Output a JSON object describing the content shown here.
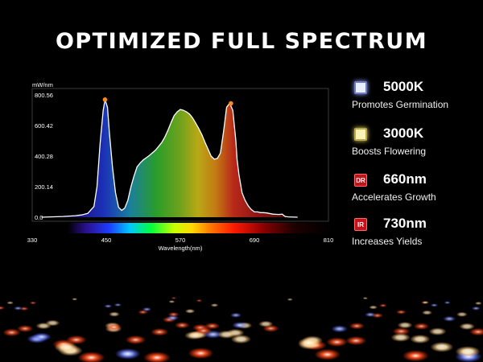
{
  "title": "OPTIMIZED FULL SPECTRUM",
  "legend": [
    {
      "name": "5000K",
      "desc": "Promotes Germination",
      "icon": "white-led-icon",
      "badge": ""
    },
    {
      "name": "3000K",
      "desc": "Boosts Flowering",
      "icon": "warm-led-icon",
      "badge": ""
    },
    {
      "name": "660nm",
      "desc": "Accelerates Growth",
      "icon": "deep-red-led-icon",
      "badge": "DR"
    },
    {
      "name": "730nm",
      "desc": "Increases Yields",
      "icon": "infrared-led-icon",
      "badge": "IR"
    }
  ],
  "chart_data": {
    "type": "area",
    "title": "",
    "xlabel": "Wavelength(nm)",
    "ylabel": "mW/nm",
    "xlim": [
      330,
      810
    ],
    "ylim": [
      0,
      800.56
    ],
    "xticks": [
      330,
      450,
      570,
      690,
      810
    ],
    "yticks": [
      0.0,
      200.14,
      400.28,
      600.42,
      800.56
    ],
    "ytick_labels": [
      "0.0",
      "200.14",
      "400.28",
      "600.42",
      "800.56"
    ],
    "grid": false,
    "fill": "visible-spectrum gradient",
    "series": [
      {
        "x": [
          345,
          380,
          400,
          410,
          420,
          430,
          435,
          440,
          445,
          448,
          452,
          455,
          460,
          465,
          470,
          475,
          480,
          485,
          490,
          495,
          500,
          505,
          510,
          515,
          520,
          530,
          540,
          545,
          550,
          555,
          560,
          565,
          570,
          575,
          580,
          585,
          590,
          595,
          600,
          605,
          610,
          615,
          620,
          625,
          630,
          635,
          640,
          645,
          650,
          655,
          660,
          662,
          665,
          670,
          675,
          680,
          685,
          690,
          695,
          700,
          705,
          710,
          720,
          730,
          735,
          740,
          745,
          760
        ],
        "y": [
          0,
          5,
          10,
          15,
          25,
          70,
          200,
          480,
          700,
          770,
          720,
          560,
          330,
          160,
          65,
          45,
          60,
          110,
          200,
          270,
          330,
          355,
          375,
          390,
          405,
          440,
          490,
          525,
          570,
          620,
          665,
          690,
          705,
          700,
          690,
          675,
          650,
          615,
          580,
          540,
          490,
          445,
          400,
          380,
          385,
          420,
          560,
          720,
          745,
          700,
          500,
          380,
          280,
          160,
          110,
          75,
          50,
          35,
          35,
          30,
          30,
          28,
          20,
          18,
          20,
          5,
          2,
          0
        ]
      }
    ],
    "markers": [
      {
        "x": 448,
        "y": 770
      },
      {
        "x": 652,
        "y": 745
      }
    ]
  }
}
